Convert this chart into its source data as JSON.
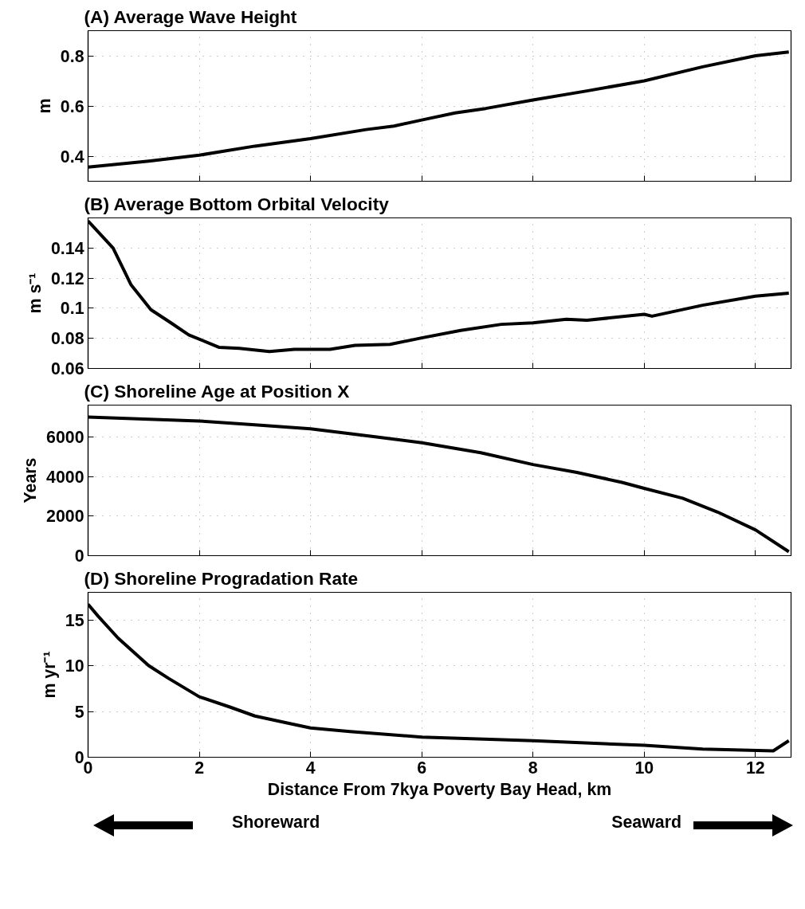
{
  "chart_data": [
    {
      "type": "line",
      "title": "(A) Average Wave Height",
      "ylabel": "m",
      "color": "#000000",
      "line_style": "solid",
      "grid": true,
      "tick_labels": "y",
      "x": [
        0,
        1.09,
        2,
        3,
        4,
        5,
        5.5,
        6,
        6.6,
        7.15,
        8,
        8.97,
        10,
        11.05,
        12,
        12.6
      ],
      "values": [
        0.356,
        0.38,
        0.404,
        0.44,
        0.47,
        0.506,
        0.52,
        0.544,
        0.572,
        0.59,
        0.624,
        0.66,
        0.7,
        0.756,
        0.8,
        0.815
      ],
      "xlim": [
        0,
        12.64
      ],
      "xticks": [
        0,
        2,
        4,
        6,
        8,
        10,
        12
      ],
      "ylim": [
        0.3,
        0.9
      ],
      "yticks": [
        0.4,
        0.6,
        0.8
      ]
    },
    {
      "type": "line",
      "title": "(B) Average Bottom Orbital Velocity",
      "ylabel": "m s⁻¹",
      "color": "#000000",
      "line_style": "solid",
      "grid": true,
      "tick_labels": "y",
      "x": [
        0,
        0.45,
        0.77,
        1.13,
        1.49,
        1.81,
        2.36,
        2.72,
        3.26,
        3.71,
        4.35,
        4.8,
        5.43,
        6,
        6.7,
        7.43,
        8,
        8.6,
        8.97,
        10,
        10.14,
        11.05,
        12,
        12.6
      ],
      "values": [
        0.158,
        0.14,
        0.1157,
        0.099,
        0.0903,
        0.0823,
        0.074,
        0.0733,
        0.0713,
        0.0727,
        0.0727,
        0.0753,
        0.076,
        0.0803,
        0.0853,
        0.0893,
        0.0903,
        0.0927,
        0.092,
        0.096,
        0.0947,
        0.102,
        0.108,
        0.11
      ],
      "xlim": [
        0,
        12.64
      ],
      "xticks": [
        0,
        2,
        4,
        6,
        8,
        10,
        12
      ],
      "ylim": [
        0.06,
        0.16
      ],
      "yticks": [
        0.06,
        0.08,
        0.1,
        0.12,
        0.14
      ]
    },
    {
      "type": "line",
      "title": "(C) Shoreline Age at Position X",
      "ylabel": "Years",
      "color": "#000000",
      "line_style": "solid",
      "grid": true,
      "tick_labels": "y",
      "x": [
        0,
        2,
        3,
        4,
        5.16,
        6,
        7.06,
        8,
        8.79,
        9.6,
        10,
        10.69,
        11.32,
        12,
        12.6
      ],
      "values": [
        7000,
        6800,
        6600,
        6400,
        6000,
        5700,
        5200,
        4600,
        4200,
        3700,
        3400,
        2900,
        2200,
        1300,
        200
      ],
      "xlim": [
        0,
        12.64
      ],
      "xticks": [
        0,
        2,
        4,
        6,
        8,
        10,
        12
      ],
      "ylim": [
        0,
        7600
      ],
      "yticks": [
        0,
        2000,
        4000,
        6000
      ]
    },
    {
      "type": "line",
      "title": "(D) Shoreline Progradation Rate",
      "ylabel": "m yr⁻¹",
      "xlabel": "Distance From 7kya Poverty Bay Head, km",
      "color": "#000000",
      "line_style": "solid",
      "grid": true,
      "x": [
        0,
        0.18,
        0.54,
        1.09,
        1.45,
        2,
        2.54,
        3,
        3.53,
        4,
        4.71,
        6,
        8,
        10,
        11.05,
        12.32,
        12.6
      ],
      "values": [
        16.7,
        15.4,
        13.0,
        10.0,
        8.6,
        6.6,
        5.5,
        4.5,
        3.8,
        3.2,
        2.8,
        2.2,
        1.8,
        1.3,
        0.9,
        0.7,
        1.8
      ],
      "xlim": [
        0,
        12.64
      ],
      "xticks": [
        0,
        2,
        4,
        6,
        8,
        10,
        12
      ],
      "ylim": [
        0,
        18
      ],
      "yticks": [
        0,
        5,
        10,
        15
      ],
      "annotations": [
        "Shoreward",
        "Seaward"
      ]
    }
  ]
}
